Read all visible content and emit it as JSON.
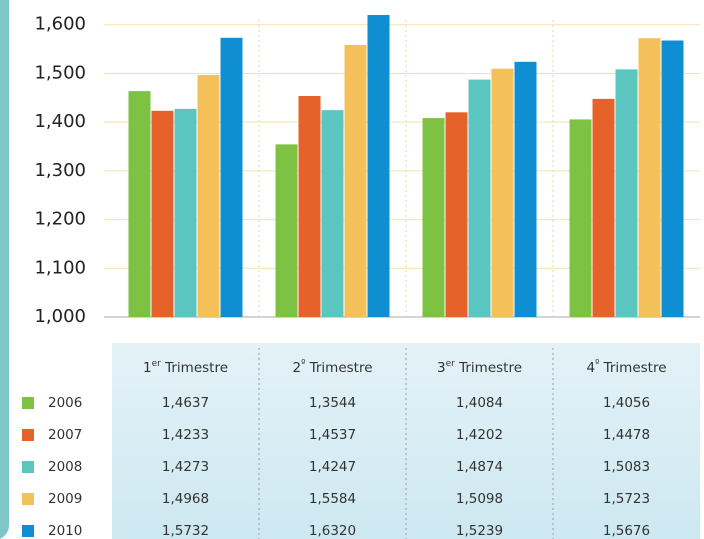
{
  "chart_data": {
    "type": "bar",
    "categories": [
      "1er Trimestre",
      "2º Trimestre",
      "3er Trimestre",
      "4º Trimestre"
    ],
    "series": [
      {
        "name": "2006",
        "color": "#7dc242",
        "values": [
          1.4637,
          1.3544,
          1.4084,
          1.4056
        ],
        "value_labels": [
          "1,4637",
          "1,3544",
          "1,4084",
          "1,4056"
        ]
      },
      {
        "name": "2007",
        "color": "#e5622a",
        "values": [
          1.4233,
          1.4537,
          1.4202,
          1.4478
        ],
        "value_labels": [
          "1,4233",
          "1,4537",
          "1,4202",
          "1,4478"
        ]
      },
      {
        "name": "2008",
        "color": "#5bc5c0",
        "values": [
          1.4273,
          1.4247,
          1.4874,
          1.5083
        ],
        "value_labels": [
          "1,4273",
          "1,4247",
          "1,4874",
          "1,5083"
        ]
      },
      {
        "name": "2009",
        "color": "#f4c05a",
        "values": [
          1.4968,
          1.5584,
          1.5098,
          1.5723
        ],
        "value_labels": [
          "1,4968",
          "1,5584",
          "1,5098",
          "1,5723"
        ]
      },
      {
        "name": "2010",
        "color": "#0f8fd1",
        "values": [
          1.5732,
          1.632,
          1.5239,
          1.5676
        ],
        "value_labels": [
          "1,5732",
          "1,6320",
          "1,5239",
          "1,5676"
        ]
      }
    ],
    "ylim": [
      1.0,
      1.62
    ],
    "yticks": [
      {
        "value": 1.0,
        "label": "1,000"
      },
      {
        "value": 1.1,
        "label": "1,100"
      },
      {
        "value": 1.2,
        "label": "1,200"
      },
      {
        "value": 1.3,
        "label": "1,300"
      },
      {
        "value": 1.4,
        "label": "1,400"
      },
      {
        "value": 1.5,
        "label": "1,500"
      },
      {
        "value": 1.6,
        "label": "1,600"
      }
    ],
    "grid": true
  }
}
